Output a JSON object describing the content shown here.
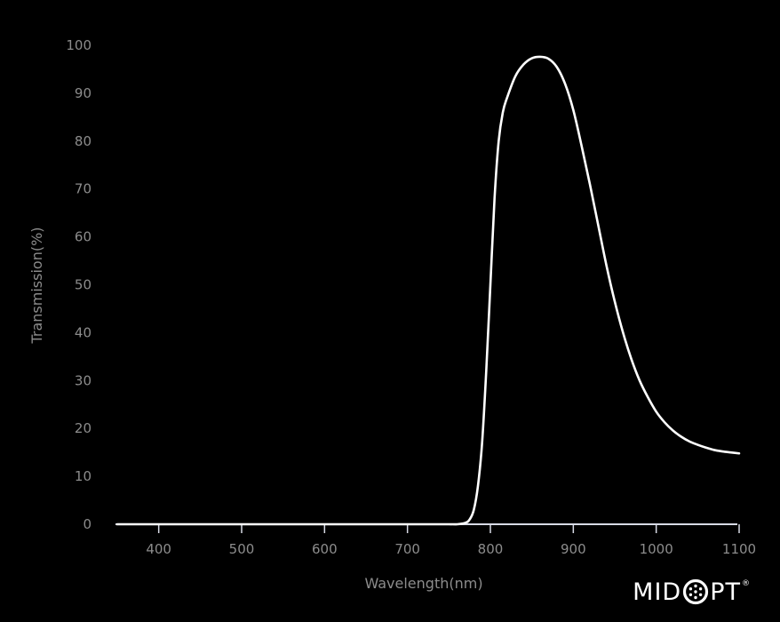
{
  "chart_data": {
    "type": "line",
    "xlabel": "Wavelength(nm)",
    "ylabel": "Transmission(%)",
    "xlim": [
      350,
      1100
    ],
    "ylim": [
      0,
      100
    ],
    "xticks": [
      400,
      500,
      600,
      700,
      800,
      900,
      1000,
      1100
    ],
    "yticks": [
      0,
      10,
      20,
      30,
      40,
      50,
      60,
      70,
      80,
      90,
      100
    ],
    "grid": false,
    "series": [
      {
        "color": "#ffffff",
        "x": [
          350,
          400,
          500,
          600,
          700,
          750,
          760,
          770,
          775,
          780,
          785,
          790,
          795,
          800,
          805,
          810,
          815,
          820,
          830,
          840,
          850,
          860,
          870,
          880,
          890,
          900,
          910,
          920,
          930,
          940,
          950,
          960,
          970,
          980,
          990,
          1000,
          1010,
          1020,
          1030,
          1040,
          1050,
          1060,
          1070,
          1080,
          1090,
          1100
        ],
        "y": [
          0,
          0,
          0,
          0,
          0,
          0,
          0,
          0.3,
          1,
          3,
          8,
          17,
          32,
          50,
          68,
          80,
          86,
          89,
          93.5,
          96,
          97.3,
          97.6,
          97.2,
          95.5,
          92,
          86.5,
          79,
          71,
          62.5,
          54,
          46.5,
          40,
          34.5,
          30,
          26.5,
          23.5,
          21.3,
          19.6,
          18.3,
          17.3,
          16.6,
          16,
          15.5,
          15.2,
          15,
          14.8
        ]
      }
    ]
  },
  "logo": {
    "text_left": "MID",
    "text_right": "PT",
    "mark": "optic-o-icon",
    "registered": "®"
  }
}
